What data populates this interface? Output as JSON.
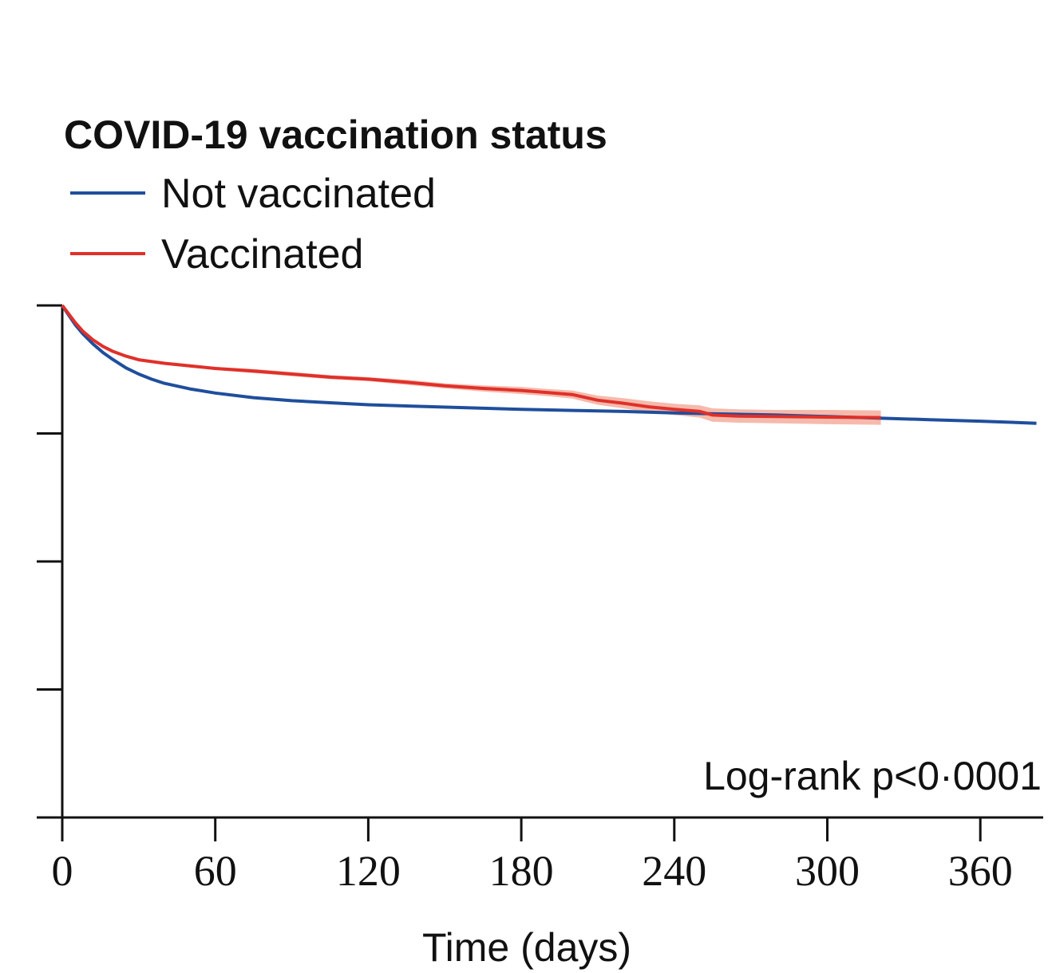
{
  "chart_data": {
    "type": "line",
    "title": "",
    "xlabel": "Time (days)",
    "ylabel": "",
    "xlim": [
      0,
      382
    ],
    "ylim": [
      0,
      1
    ],
    "x_ticks": [
      0,
      60,
      120,
      180,
      240,
      300,
      360
    ],
    "x_tick_labels": [
      "0",
      "60",
      "120",
      "180",
      "240",
      "300",
      "360"
    ],
    "y_ticks": [
      0,
      0.25,
      0.5,
      0.75,
      1
    ],
    "legend_title": "COVID-19 vaccination status",
    "legend_position": "top-left",
    "annotation": "Log-rank p<0·0001",
    "series": [
      {
        "name": "Not vaccinated",
        "color": "#1f4e9c",
        "x": [
          0,
          2,
          5,
          8,
          12,
          16,
          20,
          25,
          30,
          35,
          40,
          50,
          60,
          75,
          90,
          105,
          120,
          140,
          160,
          180,
          200,
          220,
          240,
          260,
          280,
          300,
          320,
          340,
          360,
          382
        ],
        "y": [
          1.0,
          0.985,
          0.963,
          0.945,
          0.925,
          0.908,
          0.894,
          0.878,
          0.866,
          0.856,
          0.848,
          0.837,
          0.829,
          0.82,
          0.814,
          0.81,
          0.806,
          0.803,
          0.8,
          0.797,
          0.795,
          0.793,
          0.79,
          0.788,
          0.786,
          0.783,
          0.78,
          0.777,
          0.774,
          0.77
        ]
      },
      {
        "name": "Vaccinated",
        "color": "#e0302a",
        "ci_color": "#f4b3a3",
        "x": [
          0,
          2,
          5,
          8,
          12,
          16,
          20,
          25,
          30,
          40,
          50,
          60,
          75,
          90,
          105,
          120,
          135,
          150,
          165,
          180,
          190,
          200,
          210,
          220,
          230,
          240,
          250,
          255,
          265,
          280,
          300,
          321
        ],
        "y": [
          1.0,
          0.987,
          0.967,
          0.95,
          0.933,
          0.92,
          0.91,
          0.901,
          0.894,
          0.887,
          0.882,
          0.877,
          0.872,
          0.866,
          0.86,
          0.856,
          0.85,
          0.843,
          0.838,
          0.834,
          0.83,
          0.826,
          0.815,
          0.809,
          0.802,
          0.797,
          0.793,
          0.786,
          0.784,
          0.783,
          0.782,
          0.781
        ],
        "ci_lower": [
          1.0,
          0.985,
          0.965,
          0.948,
          0.931,
          0.918,
          0.908,
          0.899,
          0.892,
          0.884,
          0.879,
          0.874,
          0.868,
          0.862,
          0.856,
          0.852,
          0.845,
          0.838,
          0.832,
          0.827,
          0.823,
          0.818,
          0.806,
          0.799,
          0.791,
          0.786,
          0.781,
          0.773,
          0.771,
          0.77,
          0.768,
          0.767
        ],
        "ci_upper": [
          1.0,
          0.989,
          0.969,
          0.952,
          0.935,
          0.922,
          0.912,
          0.903,
          0.896,
          0.89,
          0.885,
          0.88,
          0.876,
          0.87,
          0.864,
          0.86,
          0.855,
          0.848,
          0.844,
          0.841,
          0.837,
          0.834,
          0.824,
          0.819,
          0.813,
          0.808,
          0.805,
          0.799,
          0.797,
          0.796,
          0.796,
          0.795
        ]
      }
    ]
  }
}
